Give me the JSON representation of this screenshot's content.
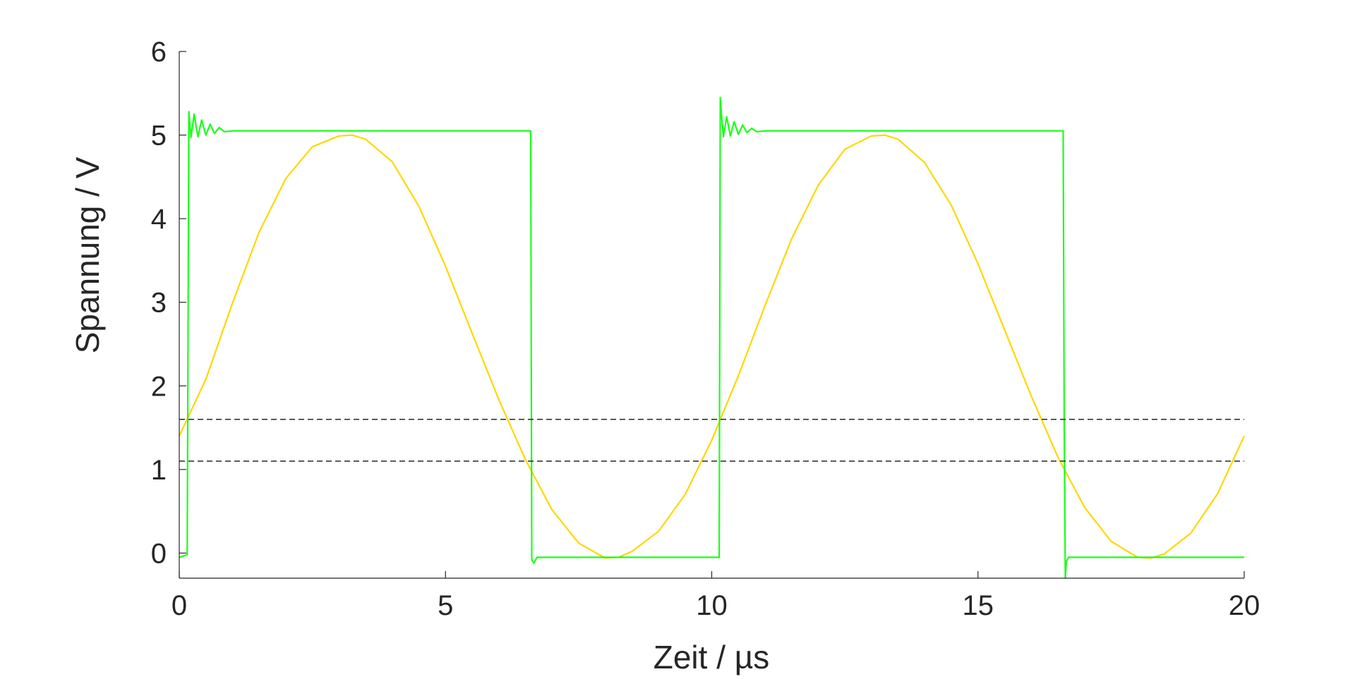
{
  "chart_data": {
    "type": "line",
    "xlabel": "Zeit / µs",
    "ylabel": "Spannung / V",
    "xlim": [
      0,
      20
    ],
    "ylim": [
      -0.3,
      6
    ],
    "xticks": [
      0,
      5,
      10,
      15,
      20
    ],
    "xtick_labels": [
      "0",
      "5",
      "10",
      "15",
      "20"
    ],
    "yticks": [
      0,
      1,
      2,
      3,
      4,
      5,
      6
    ],
    "ytick_labels": [
      "0",
      "1",
      "2",
      "3",
      "4",
      "5",
      "6"
    ],
    "grid": false,
    "legend": "none",
    "series": [
      {
        "color": "#ffd700",
        "style": "solid",
        "x": [
          0,
          0.5,
          1,
          1.5,
          2,
          2.5,
          3,
          3.25,
          3.5,
          4,
          4.5,
          5,
          5.5,
          6,
          6.5,
          7,
          7.5,
          8,
          8.25,
          8.5,
          9,
          9.5,
          10,
          10.5,
          11,
          11.5,
          12,
          12.5,
          13,
          13.25,
          13.5,
          14,
          14.5,
          15,
          15.5,
          16,
          16.5,
          17,
          17.5,
          18,
          18.25,
          18.5,
          19,
          19.5,
          20
        ],
        "y": [
          1.4,
          2.08,
          2.99,
          3.84,
          4.48,
          4.86,
          4.99,
          5.0,
          4.95,
          4.68,
          4.15,
          3.43,
          2.63,
          1.84,
          1.12,
          0.52,
          0.12,
          -0.06,
          -0.05,
          0.02,
          0.26,
          0.7,
          1.35,
          2.12,
          2.96,
          3.76,
          4.4,
          4.83,
          4.99,
          5.0,
          4.95,
          4.67,
          4.16,
          3.46,
          2.67,
          1.88,
          1.15,
          0.55,
          0.14,
          -0.05,
          -0.06,
          -0.01,
          0.24,
          0.71,
          1.4
        ]
      },
      {
        "color": "#1aff1a",
        "style": "solid",
        "x": [
          0,
          0.1,
          0.15,
          0.18,
          0.22,
          0.28,
          0.35,
          0.42,
          0.5,
          0.58,
          0.66,
          0.75,
          0.85,
          1.0,
          2,
          3,
          4,
          5,
          6,
          6.6,
          6.62,
          6.66,
          6.72,
          7,
          8,
          9,
          10,
          10.14,
          10.16,
          10.18,
          10.22,
          10.28,
          10.35,
          10.42,
          10.5,
          10.58,
          10.66,
          10.75,
          10.85,
          11.0,
          12,
          13,
          14,
          15,
          16,
          16.6,
          16.62,
          16.64,
          16.66,
          16.7,
          16.75,
          17,
          18,
          19,
          20
        ],
        "y": [
          -0.05,
          -0.03,
          -0.02,
          5.28,
          4.97,
          5.25,
          4.98,
          5.18,
          5.0,
          5.13,
          5.02,
          5.09,
          5.04,
          5.05,
          5.05,
          5.05,
          5.05,
          5.05,
          5.05,
          5.05,
          -0.08,
          -0.12,
          -0.05,
          -0.05,
          -0.05,
          -0.05,
          -0.05,
          -0.05,
          5.45,
          5.26,
          4.98,
          5.22,
          4.99,
          5.16,
          5.01,
          5.12,
          5.03,
          5.08,
          5.04,
          5.05,
          5.05,
          5.05,
          5.05,
          5.05,
          5.05,
          5.05,
          1.5,
          -0.3,
          -0.1,
          -0.05,
          -0.05,
          -0.05,
          -0.05,
          -0.05,
          -0.05
        ]
      },
      {
        "color": "#262626",
        "style": "dashed",
        "x": [
          0,
          20
        ],
        "y": [
          1.6,
          1.6
        ]
      },
      {
        "color": "#262626",
        "style": "dashed",
        "x": [
          0,
          20
        ],
        "y": [
          1.1,
          1.1
        ]
      }
    ]
  }
}
